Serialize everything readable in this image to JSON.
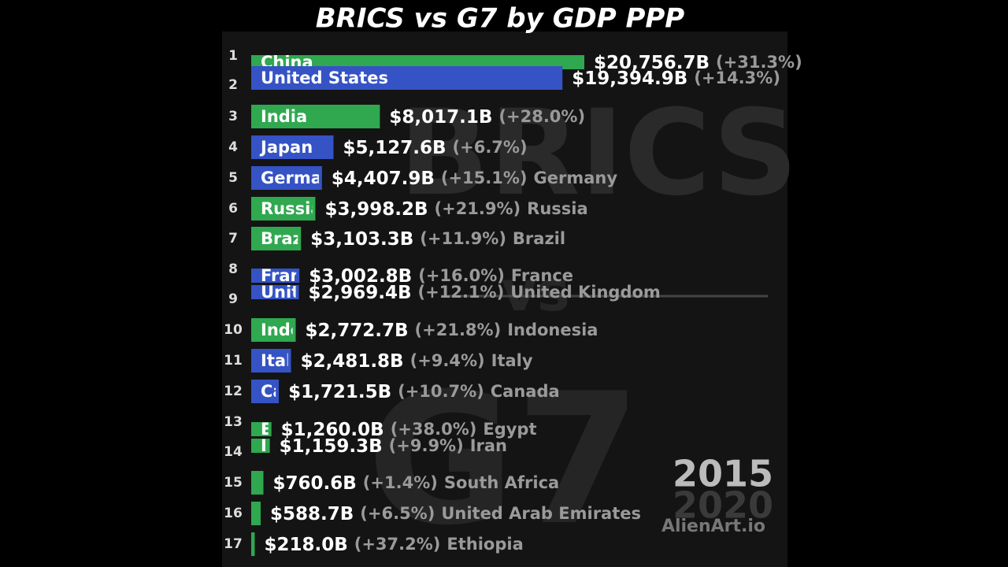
{
  "chart_data": {
    "type": "bar",
    "title": "BRICS vs G7 by GDP PPP",
    "categories": [
      "China",
      "United States",
      "India",
      "Japan",
      "Germany",
      "Russia",
      "Brazil",
      "France",
      "United Kingdom",
      "Indonesia",
      "Italy",
      "Canada",
      "Egypt",
      "Iran",
      "South Africa",
      "United Arab Emirates",
      "Ethiopia"
    ],
    "ranks": [
      1,
      2,
      3,
      4,
      5,
      6,
      7,
      8,
      9,
      10,
      11,
      12,
      13,
      14,
      15,
      16,
      17
    ],
    "values": [
      20756.7,
      19394.9,
      8017.1,
      5127.6,
      4407.9,
      3998.2,
      3103.3,
      3002.8,
      2969.4,
      2772.7,
      2481.8,
      1721.5,
      1260.0,
      1159.3,
      760.6,
      588.7,
      218.0
    ],
    "value_labels": [
      "$20,756.7B",
      "$19,394.9B",
      "$8,017.1B",
      "$5,127.6B",
      "$4,407.9B",
      "$3,998.2B",
      "$3,103.3B",
      "$3,002.8B",
      "$2,969.4B",
      "$2,772.7B",
      "$2,481.8B",
      "$1,721.5B",
      "$1,260.0B",
      "$1,159.3B",
      "$760.6B",
      "$588.7B",
      "$218.0B"
    ],
    "change_labels": [
      "(+31.3%)",
      "(+14.3%)",
      "(+28.0%)",
      "(+6.7%)",
      "(+15.1%)",
      "(+21.9%)",
      "(+11.9%)",
      "(+16.0%)",
      "(+12.1%)",
      "(+21.8%)",
      "(+9.4%)",
      "(+10.7%)",
      "(+38.0%)",
      "(+9.9%)",
      "(+1.4%)",
      "(+6.5%)",
      "(+37.2%)"
    ],
    "colors": [
      "#2fa84f",
      "#3553c4",
      "#2fa84f",
      "#3553c4",
      "#3553c4",
      "#2fa84f",
      "#2fa84f",
      "#3553c4",
      "#3553c4",
      "#2fa84f",
      "#3553c4",
      "#3553c4",
      "#2fa84f",
      "#2fa84f",
      "#2fa84f",
      "#2fa84f",
      "#2fa84f"
    ],
    "year": "2015",
    "next_year": "2020",
    "background_text": [
      "BRICS",
      "vs",
      "G7"
    ],
    "watermark": "AlienArt.io"
  }
}
